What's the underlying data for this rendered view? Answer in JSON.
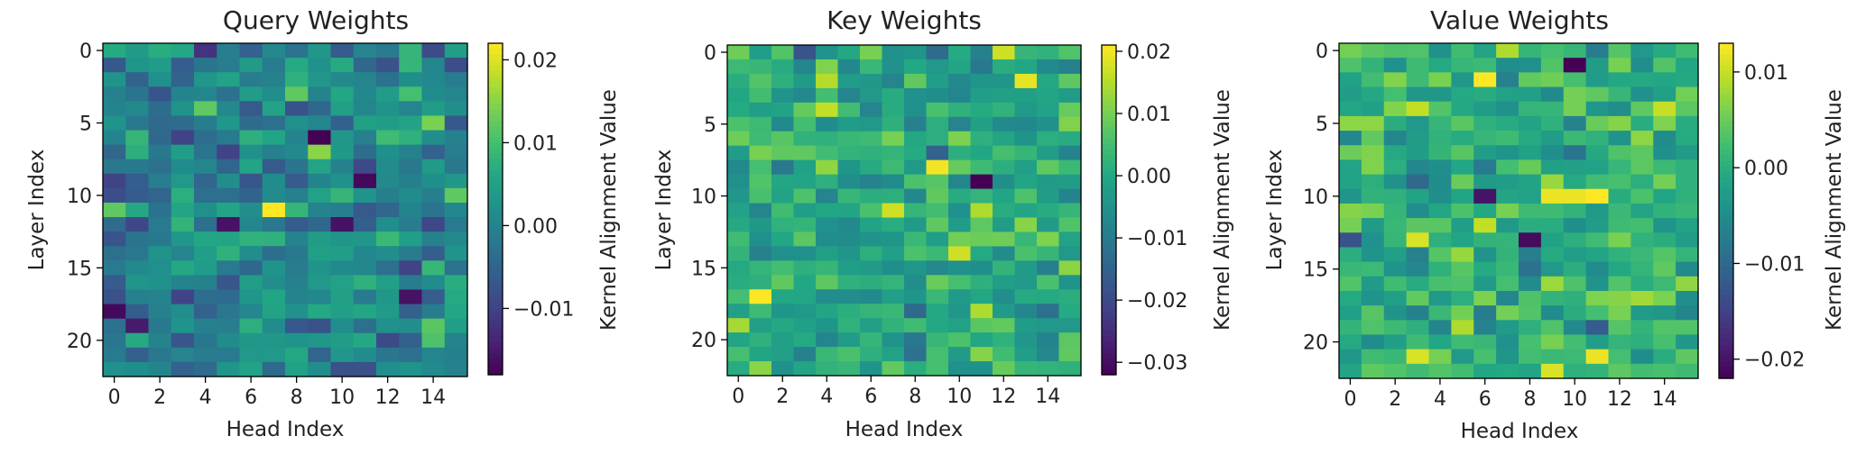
{
  "chart_data": [
    {
      "type": "heatmap",
      "title": "Query Weights",
      "xlabel": "Head Index",
      "ylabel": "Layer Index",
      "colorbar_label": "Kernel Alignment Value",
      "colormap": "viridis",
      "rows": 23,
      "cols": 16,
      "x_ticks": [
        0,
        2,
        4,
        6,
        8,
        10,
        12,
        14
      ],
      "y_ticks": [
        0,
        5,
        10,
        15,
        20
      ],
      "vmin": -0.018,
      "vmax": 0.022,
      "colorbar_ticks": [
        {
          "value": 0.02,
          "label": "0.02"
        },
        {
          "value": 0.01,
          "label": "0.01"
        },
        {
          "value": 0.0,
          "label": "0.00"
        },
        {
          "value": -0.01,
          "label": "−0.01"
        }
      ],
      "seed": 7,
      "noise_scale": 0.0045,
      "extremes": [
        {
          "row": 6,
          "col": 9,
          "value": -0.018
        },
        {
          "row": 7,
          "col": 9,
          "value": 0.015
        },
        {
          "row": 9,
          "col": 11,
          "value": -0.017
        },
        {
          "row": 11,
          "col": 0,
          "value": 0.012
        },
        {
          "row": 11,
          "col": 7,
          "value": 0.022
        },
        {
          "row": 12,
          "col": 5,
          "value": -0.016
        },
        {
          "row": 12,
          "col": 10,
          "value": -0.016
        },
        {
          "row": 17,
          "col": 13,
          "value": -0.016
        },
        {
          "row": 18,
          "col": 0,
          "value": -0.017
        },
        {
          "row": 19,
          "col": 1,
          "value": -0.015
        },
        {
          "row": 0,
          "col": 4,
          "value": -0.012
        },
        {
          "row": 3,
          "col": 8,
          "value": 0.012
        },
        {
          "row": 3,
          "col": 13,
          "value": 0.01
        },
        {
          "row": 10,
          "col": 15,
          "value": 0.012
        }
      ]
    },
    {
      "type": "heatmap",
      "title": "Key Weights",
      "xlabel": "Head Index",
      "ylabel": "Layer Index",
      "colorbar_label": "Kernel Alignment Value",
      "colormap": "viridis",
      "rows": 23,
      "cols": 16,
      "x_ticks": [
        0,
        2,
        4,
        6,
        8,
        10,
        12,
        14
      ],
      "y_ticks": [
        0,
        5,
        10,
        15,
        20
      ],
      "vmin": -0.032,
      "vmax": 0.021,
      "colorbar_ticks": [
        {
          "value": 0.02,
          "label": "0.02"
        },
        {
          "value": 0.01,
          "label": "0.01"
        },
        {
          "value": 0.0,
          "label": "0.00"
        },
        {
          "value": -0.01,
          "label": "−0.01"
        },
        {
          "value": -0.02,
          "label": "−0.02"
        },
        {
          "value": -0.03,
          "label": "−0.03"
        }
      ],
      "seed": 19,
      "noise_scale": 0.0055,
      "extremes": [
        {
          "row": 0,
          "col": 12,
          "value": 0.017
        },
        {
          "row": 2,
          "col": 13,
          "value": 0.019
        },
        {
          "row": 4,
          "col": 4,
          "value": 0.016
        },
        {
          "row": 8,
          "col": 9,
          "value": 0.02
        },
        {
          "row": 9,
          "col": 11,
          "value": -0.032
        },
        {
          "row": 11,
          "col": 7,
          "value": 0.017
        },
        {
          "row": 14,
          "col": 10,
          "value": 0.017
        },
        {
          "row": 17,
          "col": 1,
          "value": 0.021
        },
        {
          "row": 0,
          "col": 3,
          "value": -0.018
        },
        {
          "row": 7,
          "col": 9,
          "value": -0.015
        }
      ]
    },
    {
      "type": "heatmap",
      "title": "Value Weights",
      "xlabel": "Head Index",
      "ylabel": "Layer Index",
      "colorbar_label": "Kernel Alignment Value",
      "colormap": "viridis",
      "rows": 23,
      "cols": 16,
      "x_ticks": [
        0,
        2,
        4,
        6,
        8,
        10,
        12,
        14
      ],
      "y_ticks": [
        0,
        5,
        10,
        15,
        20
      ],
      "vmin": -0.022,
      "vmax": 0.013,
      "colorbar_ticks": [
        {
          "value": 0.01,
          "label": "0.01"
        },
        {
          "value": 0.0,
          "label": "0.00"
        },
        {
          "value": -0.01,
          "label": "−0.01"
        },
        {
          "value": -0.02,
          "label": "−0.02"
        }
      ],
      "seed": 31,
      "noise_scale": 0.004,
      "extremes": [
        {
          "row": 1,
          "col": 10,
          "value": -0.022
        },
        {
          "row": 2,
          "col": 6,
          "value": 0.013
        },
        {
          "row": 10,
          "col": 6,
          "value": -0.02
        },
        {
          "row": 10,
          "col": 9,
          "value": 0.012
        },
        {
          "row": 10,
          "col": 10,
          "value": 0.012
        },
        {
          "row": 10,
          "col": 11,
          "value": 0.013
        },
        {
          "row": 13,
          "col": 8,
          "value": -0.021
        },
        {
          "row": 13,
          "col": 3,
          "value": 0.011
        },
        {
          "row": 21,
          "col": 11,
          "value": 0.012
        },
        {
          "row": 21,
          "col": 3,
          "value": 0.011
        },
        {
          "row": 22,
          "col": 9,
          "value": 0.011
        },
        {
          "row": 4,
          "col": 14,
          "value": 0.01
        },
        {
          "row": 13,
          "col": 0,
          "value": -0.013
        }
      ]
    }
  ]
}
